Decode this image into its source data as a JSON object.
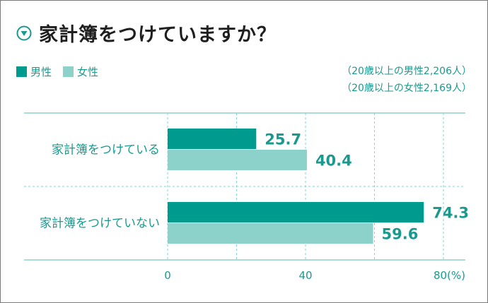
{
  "title": "家計簿をつけていますか？",
  "colors": {
    "male": "#009b8f",
    "female": "#8dd1cb",
    "text": "#1a9a8f",
    "grid": "#8dd1cb",
    "title": "#1f1f1f"
  },
  "legend": [
    {
      "label": "男性",
      "color": "#009b8f"
    },
    {
      "label": "女性",
      "color": "#8dd1cb"
    }
  ],
  "notes": [
    "（20歳以上の男性2,206人）",
    "（20歳以上の女性2,169人）"
  ],
  "chart_data": {
    "type": "bar",
    "orientation": "horizontal",
    "categories": [
      "家計簿をつけている",
      "家計簿をつけていない"
    ],
    "series": [
      {
        "name": "男性",
        "values": [
          25.7,
          74.3
        ]
      },
      {
        "name": "女性",
        "values": [
          40.4,
          59.6
        ]
      }
    ],
    "xlim": [
      0,
      80
    ],
    "xticks": [
      "0",
      "40",
      "80(%)"
    ],
    "grid": true
  }
}
